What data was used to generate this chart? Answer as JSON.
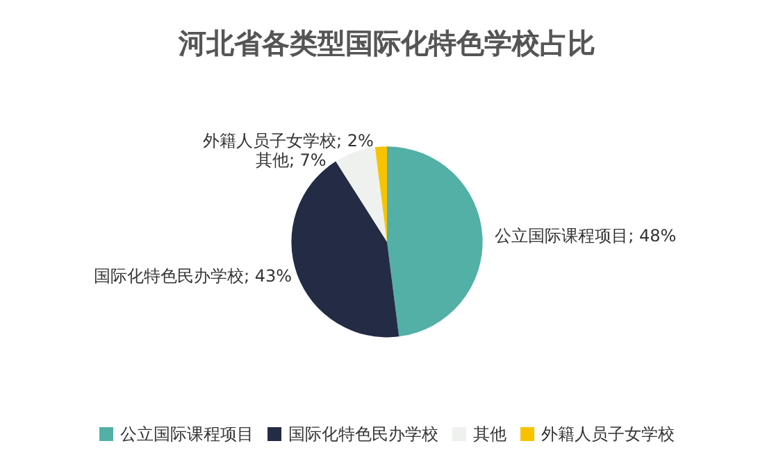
{
  "chart_data": {
    "type": "pie",
    "title": "河北省各类型国际化特色学校占比",
    "categories": [
      "公立国际课程项目",
      "国际化特色民办学校",
      "其他",
      "外籍人员子女学校"
    ],
    "values": [
      48,
      43,
      7,
      2
    ],
    "colors": [
      "#52b0a6",
      "#232b45",
      "#eef1ee",
      "#f7c300"
    ],
    "value_labels": [
      "; 48%",
      "; 43%",
      "; 7%",
      "; 2%"
    ],
    "legend": "bottom"
  }
}
